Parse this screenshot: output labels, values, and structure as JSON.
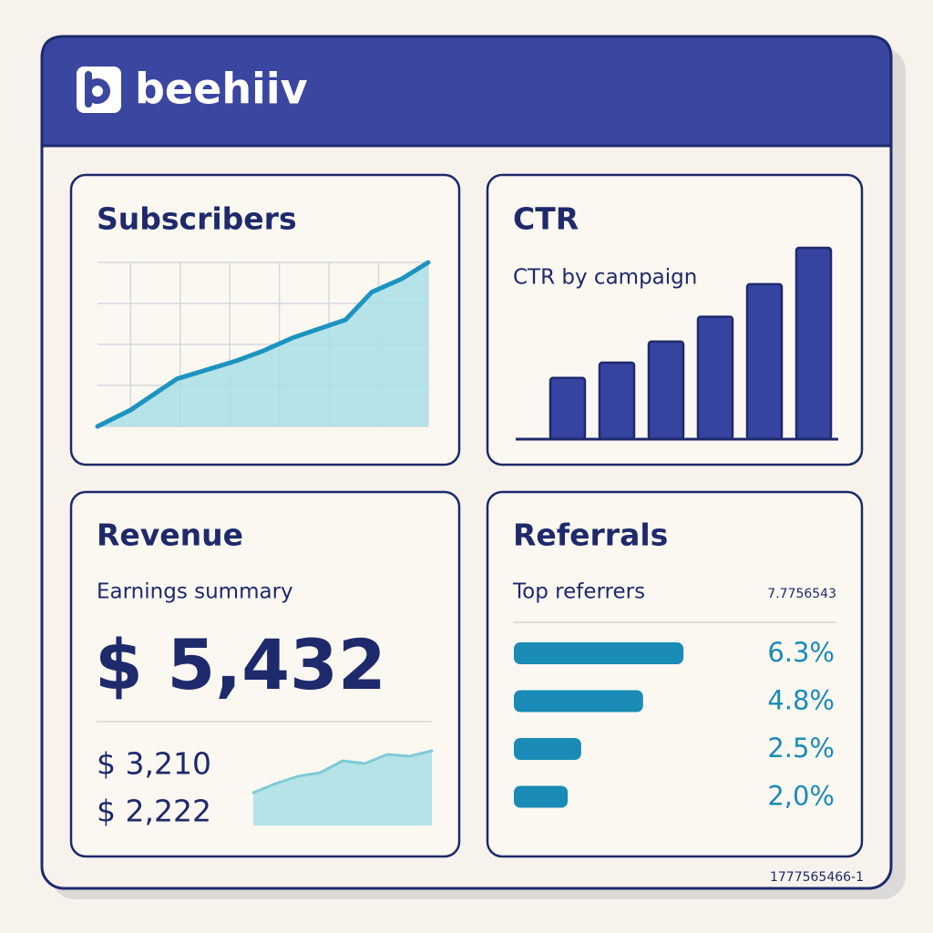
{
  "header": {
    "title": "beehiiv"
  },
  "footer": {
    "id": "1777565466-1"
  },
  "chart_data": [
    {
      "type": "area",
      "title": "Subscribers",
      "x": [
        0,
        10,
        24,
        42,
        50,
        59,
        75,
        83,
        92,
        100
      ],
      "values": [
        0,
        10,
        29,
        40,
        46,
        54,
        65,
        82,
        90,
        100
      ],
      "xlim": [
        0,
        100
      ],
      "ylim": [
        0,
        100
      ],
      "xticks": [
        10,
        25,
        40,
        55,
        70,
        85,
        100
      ],
      "yticks": [
        0,
        25,
        50,
        75,
        100
      ],
      "grid": true,
      "color": "#1d93c0",
      "fill": "#a8dfe6"
    },
    {
      "type": "bar",
      "title": "CTR",
      "subtitle": "CTR by campaign",
      "categories": [
        null,
        null,
        null,
        null,
        null,
        null
      ],
      "values": [
        3.2,
        4,
        5.1,
        6.4,
        8.1,
        10
      ],
      "ylim": [
        0,
        10
      ],
      "color": "#3743a0"
    },
    {
      "type": "area",
      "title": "Revenue",
      "subtitle": "Earnings summary",
      "headline": "$ 5,432",
      "figures": [
        "$ 3,210",
        "$ 2,222"
      ],
      "categories": [
        null,
        null,
        null,
        null,
        null,
        null,
        null,
        null,
        null
      ],
      "values": [
        36,
        46,
        54,
        58,
        71,
        68,
        78,
        76,
        82
      ],
      "ylim": [
        0,
        100
      ],
      "color": "#7fcad6",
      "fill": "#a8dfe6"
    },
    {
      "type": "barh",
      "title": "Referrals",
      "subtitle": "Top referrers",
      "annotation": "7.7756543",
      "values": [
        6.3,
        4.8,
        2.5,
        2.0
      ],
      "value_labels": [
        "6.3%",
        "4.8%",
        "2.5%",
        "2,0%"
      ],
      "xlim": [
        0,
        6.5
      ],
      "color": "#1a8bb6"
    }
  ]
}
